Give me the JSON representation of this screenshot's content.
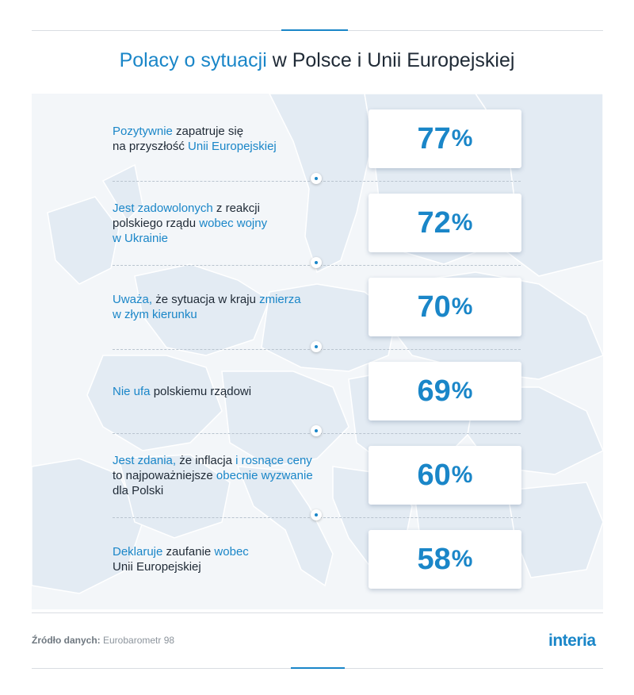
{
  "title": {
    "highlight": "Polacy o sytuacji",
    "rest": " w Polsce i Unii Europejskiej"
  },
  "chart_data": {
    "type": "table",
    "title": "Polacy o sytuacji w Polsce i Unii Europejskiej",
    "unit": "%",
    "rows": [
      {
        "segments": [
          {
            "t": "Pozytywnie",
            "hl": true
          },
          {
            "t": " zapatruje się",
            "hl": false
          },
          {
            "t": "\n",
            "hl": false
          },
          {
            "t": "na przyszłość ",
            "hl": false
          },
          {
            "t": "Unii Europejskiej",
            "hl": true
          }
        ],
        "value": 77
      },
      {
        "segments": [
          {
            "t": "Jest zadowolonych",
            "hl": true
          },
          {
            "t": " z reakcji",
            "hl": false
          },
          {
            "t": "\n",
            "hl": false
          },
          {
            "t": "polskiego rządu ",
            "hl": false
          },
          {
            "t": "wobec wojny",
            "hl": true
          },
          {
            "t": "\n",
            "hl": false
          },
          {
            "t": "w Ukrainie",
            "hl": true
          }
        ],
        "value": 72
      },
      {
        "segments": [
          {
            "t": "Uważa,",
            "hl": true
          },
          {
            "t": " że sytuacja w kraju ",
            "hl": false
          },
          {
            "t": "zmierza",
            "hl": true
          },
          {
            "t": "\n",
            "hl": false
          },
          {
            "t": "w złym kierunku",
            "hl": true
          }
        ],
        "value": 70
      },
      {
        "segments": [
          {
            "t": "Nie ufa",
            "hl": true
          },
          {
            "t": " polskiemu rządowi",
            "hl": false
          }
        ],
        "value": 69
      },
      {
        "segments": [
          {
            "t": "Jest zdania,",
            "hl": true
          },
          {
            "t": " że inflacja ",
            "hl": false
          },
          {
            "t": "i rosnące ceny",
            "hl": true
          },
          {
            "t": "\n",
            "hl": false
          },
          {
            "t": "to najpoważniejsze ",
            "hl": false
          },
          {
            "t": "obecnie wyzwanie",
            "hl": true
          },
          {
            "t": "\n",
            "hl": false
          },
          {
            "t": "dla Polski",
            "hl": false
          }
        ],
        "value": 60
      },
      {
        "segments": [
          {
            "t": "Deklaruje",
            "hl": true
          },
          {
            "t": " zaufanie ",
            "hl": false
          },
          {
            "t": "wobec",
            "hl": true
          },
          {
            "t": "\n",
            "hl": false
          },
          {
            "t": "Unii Europejskiej",
            "hl": false
          }
        ],
        "value": 58
      }
    ]
  },
  "source": {
    "label": "Źródło danych:",
    "value": " Eurobarometr 98"
  },
  "logo": "interia",
  "colors": {
    "accent": "#1a86c8",
    "text": "#1f2a36",
    "map": "#e6edf4",
    "map_lines": "#ffffff"
  }
}
